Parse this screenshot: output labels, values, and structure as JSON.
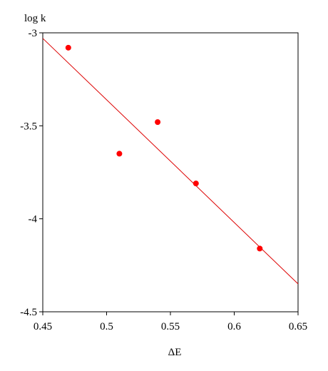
{
  "chart_data": {
    "type": "scatter",
    "x_label": "ΔE",
    "y_label": "log k",
    "x": [
      0.47,
      0.51,
      0.54,
      0.57,
      0.62
    ],
    "values": [
      -3.08,
      -3.65,
      -3.48,
      -3.81,
      -4.16
    ],
    "color": "#ff0000",
    "fit": {
      "x": [
        0.45,
        0.65
      ],
      "values": [
        -3.03,
        -4.35
      ],
      "color": "#dd0000"
    },
    "xlim": [
      0.45,
      0.65
    ],
    "xticks": [
      0.45,
      0.5,
      0.55,
      0.6,
      0.65
    ],
    "ylim": [
      -4.5,
      -3
    ],
    "yticks": [
      -3,
      -3.5,
      -4,
      -4.5
    ]
  }
}
